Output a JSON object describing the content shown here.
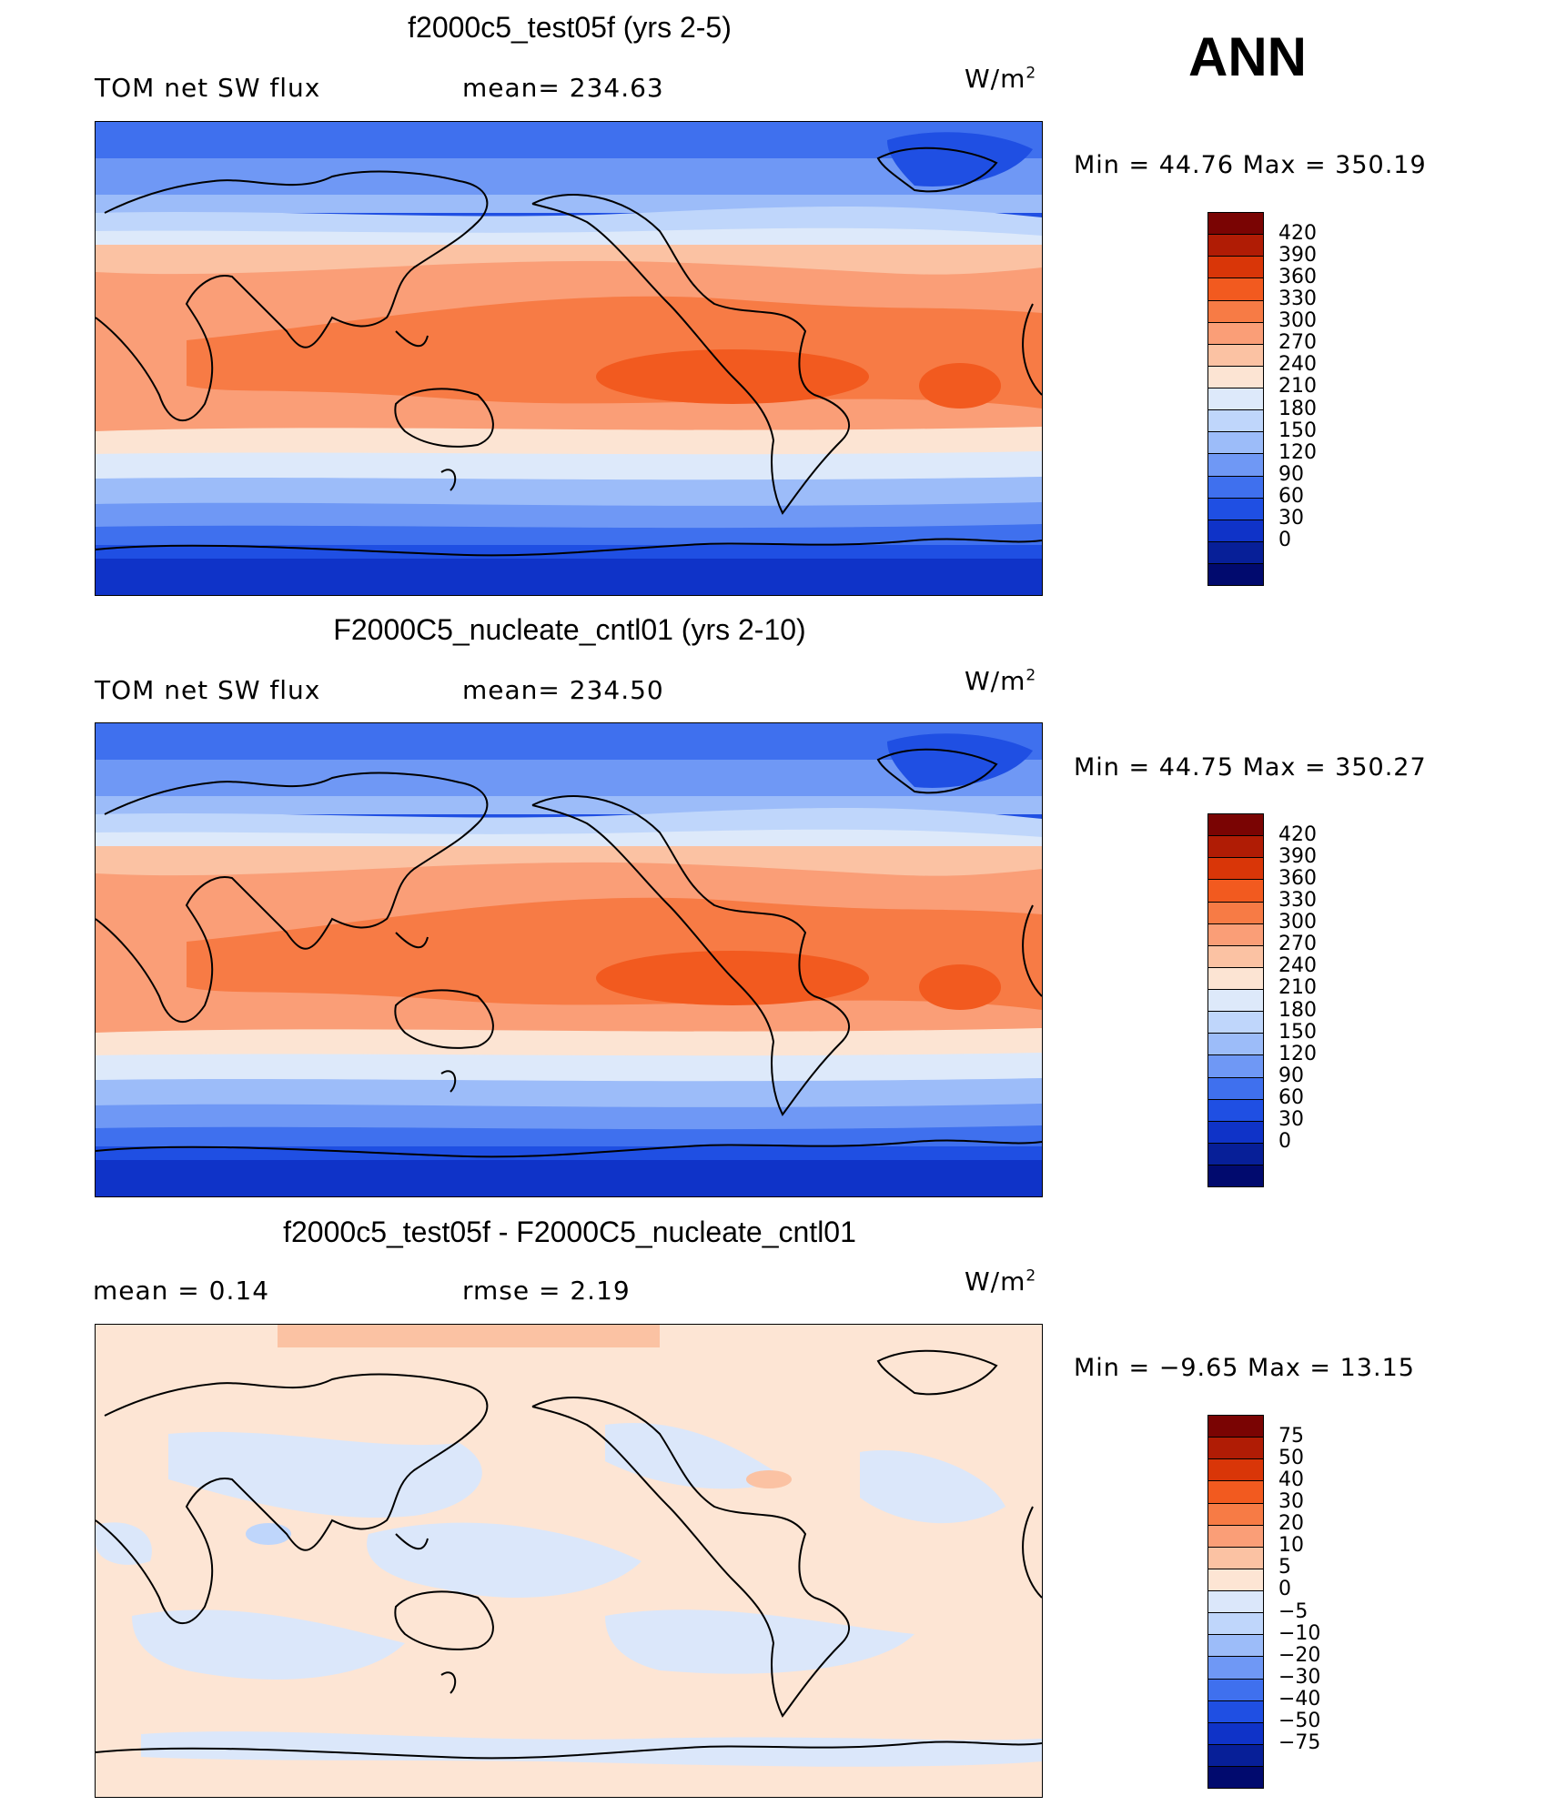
{
  "season": "ANN",
  "panels": [
    {
      "title": "f2000c5_test05f (yrs 2-5)",
      "left_label": "TOM net SW flux",
      "mid_label": "mean= 234.63",
      "unit_base": "W/m",
      "unit_exp": "2",
      "minmax": "Min  =    44.76  Max  =  350.19",
      "colorbar_labels": [
        "420",
        "390",
        "360",
        "330",
        "300",
        "270",
        "240",
        "210",
        "180",
        "150",
        "120",
        "90",
        "60",
        "30",
        "0"
      ]
    },
    {
      "title": "F2000C5_nucleate_cntl01 (yrs 2-10)",
      "left_label": "TOM net SW flux",
      "mid_label": "mean= 234.50",
      "unit_base": "W/m",
      "unit_exp": "2",
      "minmax": "Min  =    44.75  Max  =  350.27",
      "colorbar_labels": [
        "420",
        "390",
        "360",
        "330",
        "300",
        "270",
        "240",
        "210",
        "180",
        "150",
        "120",
        "90",
        "60",
        "30",
        "0"
      ]
    },
    {
      "title": "f2000c5_test05f - F2000C5_nucleate_cntl01",
      "left_label": "mean  =     0.14",
      "mid_label": "rmse  =     2.19",
      "unit_base": "W/m",
      "unit_exp": "2",
      "minmax": "Min  =   −9.65  Max  =    13.15",
      "colorbar_labels": [
        "75",
        "50",
        "40",
        "30",
        "20",
        "10",
        "5",
        "0",
        "−5",
        "−10",
        "−20",
        "−30",
        "−40",
        "−50",
        "−75"
      ]
    }
  ],
  "colors": {
    "scale": [
      "#7a0403",
      "#b01c05",
      "#d93608",
      "#f25a1f",
      "#f77b45",
      "#fa9e77",
      "#fbc2a3",
      "#fce4d3",
      "#dde9fa",
      "#bfd6fb",
      "#9cbcf9",
      "#6f98f5",
      "#3f70ee",
      "#1f4fe3",
      "#0f33c8",
      "#071f98",
      "#010a6e"
    ],
    "diff_scale": [
      "#7a0403",
      "#b01c05",
      "#d93608",
      "#f25a1f",
      "#f77b45",
      "#fa9e77",
      "#fbc2a3",
      "#fde5d4",
      "#dbe7fa",
      "#bfd6fb",
      "#9cbcf9",
      "#6f98f5",
      "#3f70ee",
      "#1f4fe3",
      "#0f33c8",
      "#071f98",
      "#010a6e"
    ]
  }
}
